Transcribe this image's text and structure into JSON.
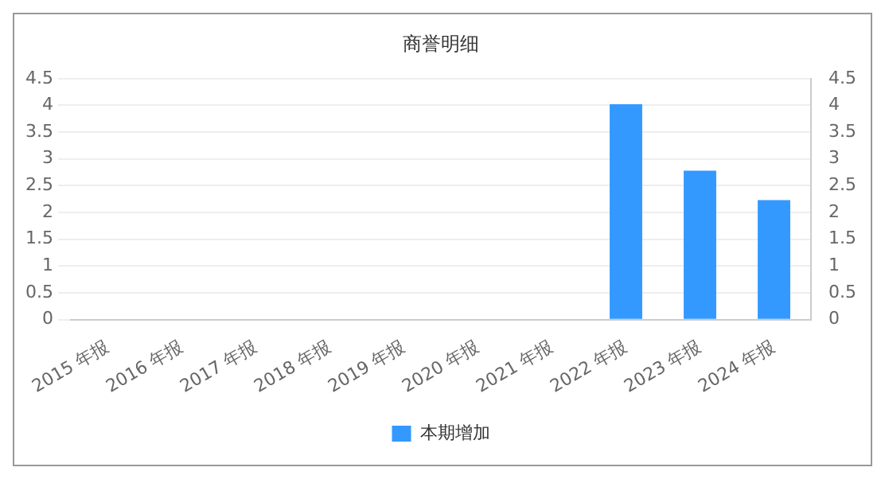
{
  "chart_data": {
    "type": "bar",
    "title": "商誉明细",
    "categories": [
      "2015 年报",
      "2016 年报",
      "2017 年报",
      "2018 年报",
      "2019 年报",
      "2020 年报",
      "2021 年报",
      "2022 年报",
      "2023 年报",
      "2024 年报"
    ],
    "series": [
      {
        "name": "本期增加",
        "color": "#3399ff",
        "values": [
          null,
          null,
          null,
          null,
          null,
          null,
          null,
          4.02,
          2.78,
          2.23
        ]
      }
    ],
    "ylim": [
      0,
      4.5
    ],
    "yticks": [
      0,
      0.5,
      1,
      1.5,
      2,
      2.5,
      3,
      3.5,
      4,
      4.5
    ],
    "y2lim": [
      0,
      4.5
    ],
    "y2ticks": [
      0,
      0.5,
      1,
      1.5,
      2,
      2.5,
      3,
      3.5,
      4,
      4.5
    ],
    "grid": "y",
    "legend": "bottom"
  }
}
